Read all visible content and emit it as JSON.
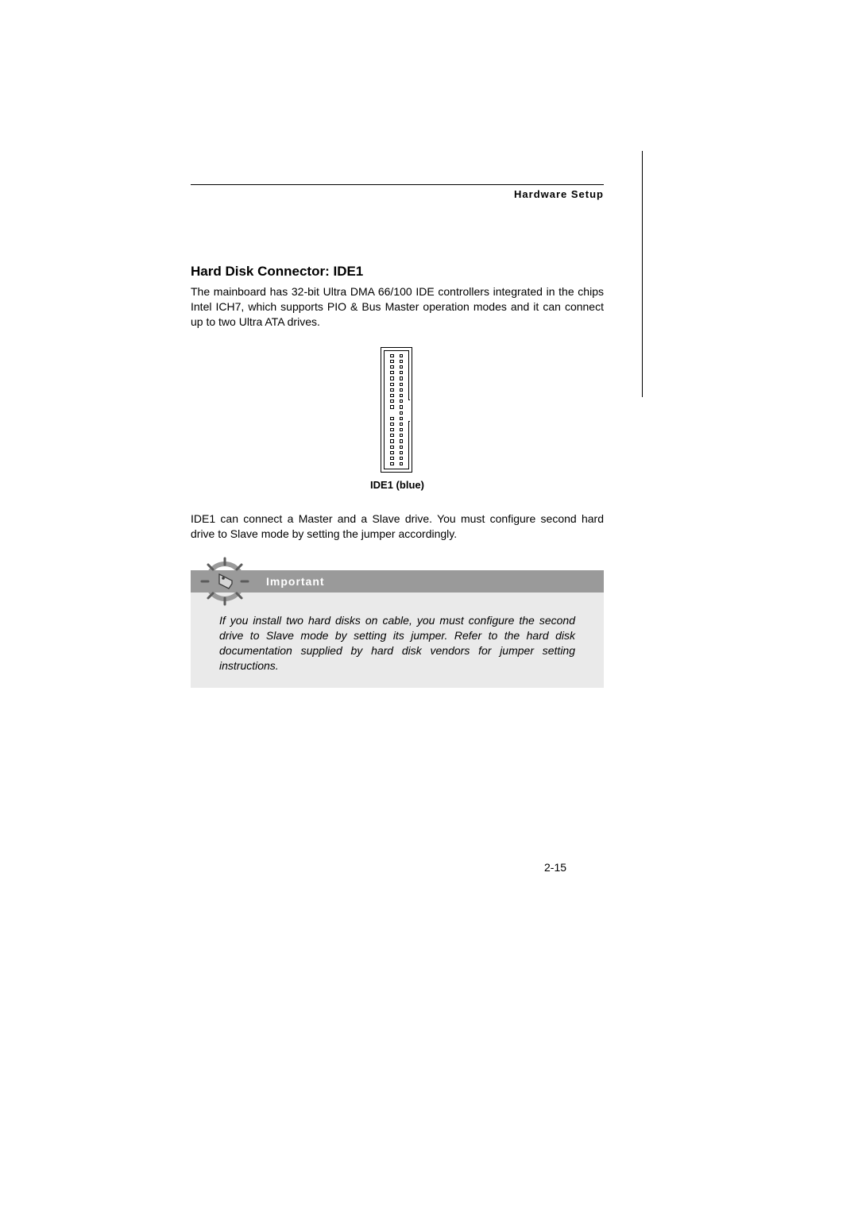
{
  "header": {
    "section": "Hardware Setup"
  },
  "title": "Hard Disk Connector: IDE1",
  "intro": "The mainboard has 32-bit Ultra DMA 66/100 IDE controllers integrated in  the chips Intel ICH7, which supports PIO & Bus Master operation modes and it can connect up to two Ultra ATA drives.",
  "connector": {
    "caption": "IDE1 (blue)",
    "rows": 20,
    "cols": 2,
    "key_row_index": 10,
    "notch_top_row": 8,
    "notch_bottom_row": 11,
    "pin_color": "#ffffff",
    "border_color": "#000000"
  },
  "master_slave": "IDE1 can connect a Master and a Slave drive. You must configure second hard drive to Slave mode by setting the jumper accordingly.",
  "important": {
    "label": "Important",
    "body": "If you install two hard disks on cable, you must configure the second drive to Slave mode by setting its jumper. Refer to the hard disk documentation supplied by hard disk vendors for jumper setting instructions.",
    "bar_color": "#9a9a9a",
    "body_bg": "#eaeaea",
    "text_color": "#ffffff"
  },
  "page_number": "2-15",
  "icon": {
    "ring_color": "#9a9a9a",
    "tick_color": "#5b5b5b",
    "tag_fill": "#d6d6d6",
    "tag_stroke": "#3a3a3a"
  }
}
